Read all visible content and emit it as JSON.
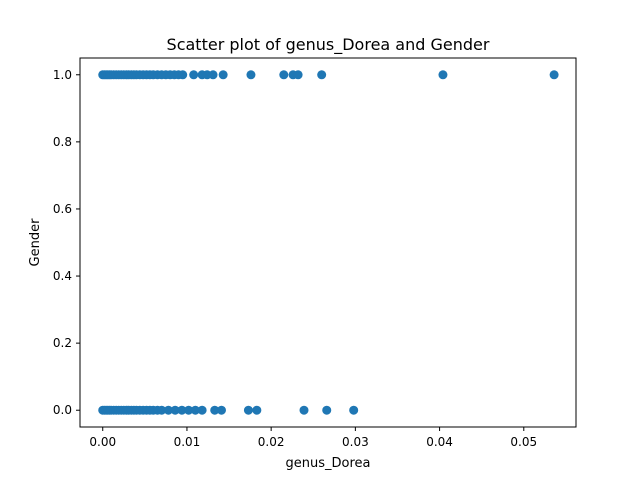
{
  "chart_data": {
    "type": "scatter",
    "title": "Scatter plot of genus_Dorea and Gender",
    "xlabel": "genus_Dorea",
    "ylabel": "Gender",
    "xlim": [
      -0.0027,
      0.0562
    ],
    "ylim": [
      -0.05,
      1.05
    ],
    "xticks": [
      0.0,
      0.01,
      0.02,
      0.03,
      0.04,
      0.05
    ],
    "xtick_labels": [
      "0.00",
      "0.01",
      "0.02",
      "0.03",
      "0.04",
      "0.05"
    ],
    "yticks": [
      0.0,
      0.2,
      0.4,
      0.6,
      0.8,
      1.0
    ],
    "ytick_labels": [
      "0.0",
      "0.2",
      "0.4",
      "0.6",
      "0.8",
      "1.0"
    ],
    "grid": false,
    "marker_color": "#1f77b4",
    "points": [
      {
        "x": 0.0,
        "y": 1
      },
      {
        "x": 0.0002,
        "y": 1
      },
      {
        "x": 0.0004,
        "y": 1
      },
      {
        "x": 0.0006,
        "y": 1
      },
      {
        "x": 0.0008,
        "y": 1
      },
      {
        "x": 0.001,
        "y": 1
      },
      {
        "x": 0.0013,
        "y": 1
      },
      {
        "x": 0.0016,
        "y": 1
      },
      {
        "x": 0.0019,
        "y": 1
      },
      {
        "x": 0.0022,
        "y": 1
      },
      {
        "x": 0.0025,
        "y": 1
      },
      {
        "x": 0.0028,
        "y": 1
      },
      {
        "x": 0.0031,
        "y": 1
      },
      {
        "x": 0.0034,
        "y": 1
      },
      {
        "x": 0.0037,
        "y": 1
      },
      {
        "x": 0.004,
        "y": 1
      },
      {
        "x": 0.0044,
        "y": 1
      },
      {
        "x": 0.0048,
        "y": 1
      },
      {
        "x": 0.0052,
        "y": 1
      },
      {
        "x": 0.0056,
        "y": 1
      },
      {
        "x": 0.006,
        "y": 1
      },
      {
        "x": 0.0065,
        "y": 1
      },
      {
        "x": 0.007,
        "y": 1
      },
      {
        "x": 0.0075,
        "y": 1
      },
      {
        "x": 0.008,
        "y": 1
      },
      {
        "x": 0.0085,
        "y": 1
      },
      {
        "x": 0.009,
        "y": 1
      },
      {
        "x": 0.0095,
        "y": 1
      },
      {
        "x": 0.0108,
        "y": 1
      },
      {
        "x": 0.0118,
        "y": 1
      },
      {
        "x": 0.0124,
        "y": 1
      },
      {
        "x": 0.0131,
        "y": 1
      },
      {
        "x": 0.0143,
        "y": 1
      },
      {
        "x": 0.0176,
        "y": 1
      },
      {
        "x": 0.0215,
        "y": 1
      },
      {
        "x": 0.0226,
        "y": 1
      },
      {
        "x": 0.0232,
        "y": 1
      },
      {
        "x": 0.026,
        "y": 1
      },
      {
        "x": 0.0404,
        "y": 1
      },
      {
        "x": 0.0536,
        "y": 1
      },
      {
        "x": 0.0,
        "y": 0
      },
      {
        "x": 0.0002,
        "y": 0
      },
      {
        "x": 0.0004,
        "y": 0
      },
      {
        "x": 0.0006,
        "y": 0
      },
      {
        "x": 0.0008,
        "y": 0
      },
      {
        "x": 0.001,
        "y": 0
      },
      {
        "x": 0.0013,
        "y": 0
      },
      {
        "x": 0.0016,
        "y": 0
      },
      {
        "x": 0.0019,
        "y": 0
      },
      {
        "x": 0.0022,
        "y": 0
      },
      {
        "x": 0.0025,
        "y": 0
      },
      {
        "x": 0.0028,
        "y": 0
      },
      {
        "x": 0.0031,
        "y": 0
      },
      {
        "x": 0.0034,
        "y": 0
      },
      {
        "x": 0.0037,
        "y": 0
      },
      {
        "x": 0.004,
        "y": 0
      },
      {
        "x": 0.0044,
        "y": 0
      },
      {
        "x": 0.0048,
        "y": 0
      },
      {
        "x": 0.0052,
        "y": 0
      },
      {
        "x": 0.0056,
        "y": 0
      },
      {
        "x": 0.006,
        "y": 0
      },
      {
        "x": 0.0065,
        "y": 0
      },
      {
        "x": 0.007,
        "y": 0
      },
      {
        "x": 0.0078,
        "y": 0
      },
      {
        "x": 0.0086,
        "y": 0
      },
      {
        "x": 0.0094,
        "y": 0
      },
      {
        "x": 0.0102,
        "y": 0
      },
      {
        "x": 0.011,
        "y": 0
      },
      {
        "x": 0.0118,
        "y": 0
      },
      {
        "x": 0.0133,
        "y": 0
      },
      {
        "x": 0.0141,
        "y": 0
      },
      {
        "x": 0.0173,
        "y": 0
      },
      {
        "x": 0.0183,
        "y": 0
      },
      {
        "x": 0.0239,
        "y": 0
      },
      {
        "x": 0.0266,
        "y": 0
      },
      {
        "x": 0.0298,
        "y": 0
      }
    ]
  }
}
